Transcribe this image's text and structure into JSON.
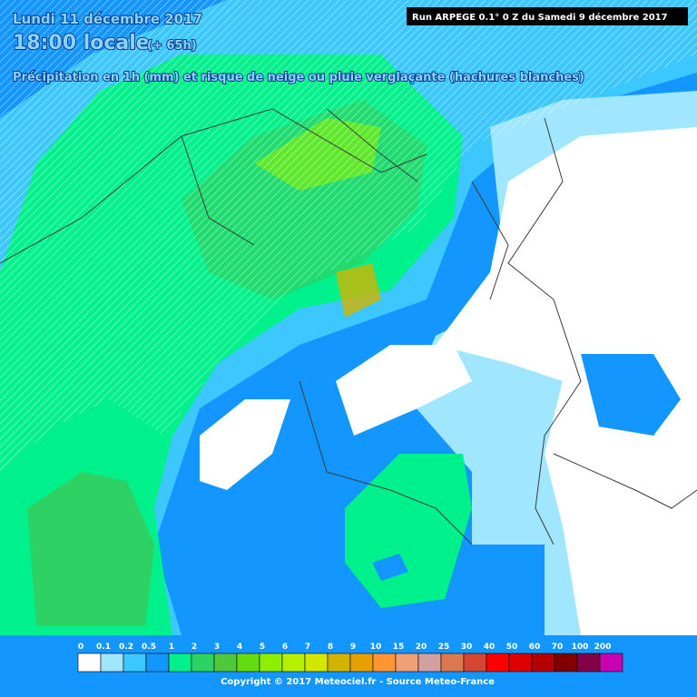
{
  "header": {
    "date": "Lundi 11 décembre 2017",
    "time": "18:00 locale",
    "lead": "(+ 65h)",
    "description": "Précipitation en 1h (mm) et risque de neige ou pluie verglaçante (hachures blanches)",
    "run": "Run ARPEGE 0.1° 0 Z du Samedi 9 décembre 2017"
  },
  "legend": [
    {
      "label": "0",
      "color": "#ffffff"
    },
    {
      "label": "0.1",
      "color": "#a0e6ff"
    },
    {
      "label": "0.2",
      "color": "#3cc8ff"
    },
    {
      "label": "0.5",
      "color": "#1496ff"
    },
    {
      "label": "1",
      "color": "#00f08c"
    },
    {
      "label": "2",
      "color": "#2ed264"
    },
    {
      "label": "3",
      "color": "#50c83c"
    },
    {
      "label": "4",
      "color": "#64dc14"
    },
    {
      "label": "5",
      "color": "#8cf000"
    },
    {
      "label": "6",
      "color": "#b4f000"
    },
    {
      "label": "7",
      "color": "#d2e600"
    },
    {
      "label": "8",
      "color": "#d2b400"
    },
    {
      "label": "9",
      "color": "#e6a000"
    },
    {
      "label": "10",
      "color": "#ff9632"
    },
    {
      "label": "15",
      "color": "#f0a078"
    },
    {
      "label": "20",
      "color": "#d2a0a0"
    },
    {
      "label": "25",
      "color": "#dc7850"
    },
    {
      "label": "30",
      "color": "#d24632"
    },
    {
      "label": "40",
      "color": "#ff0000"
    },
    {
      "label": "50",
      "color": "#dc0000"
    },
    {
      "label": "60",
      "color": "#b40000"
    },
    {
      "label": "70",
      "color": "#800000"
    },
    {
      "label": "100",
      "color": "#820046"
    },
    {
      "label": "200",
      "color": "#c800b4"
    }
  ],
  "footer": {
    "copyright": "Copyright © 2017 Meteociel.fr - Source Meteo-France"
  }
}
